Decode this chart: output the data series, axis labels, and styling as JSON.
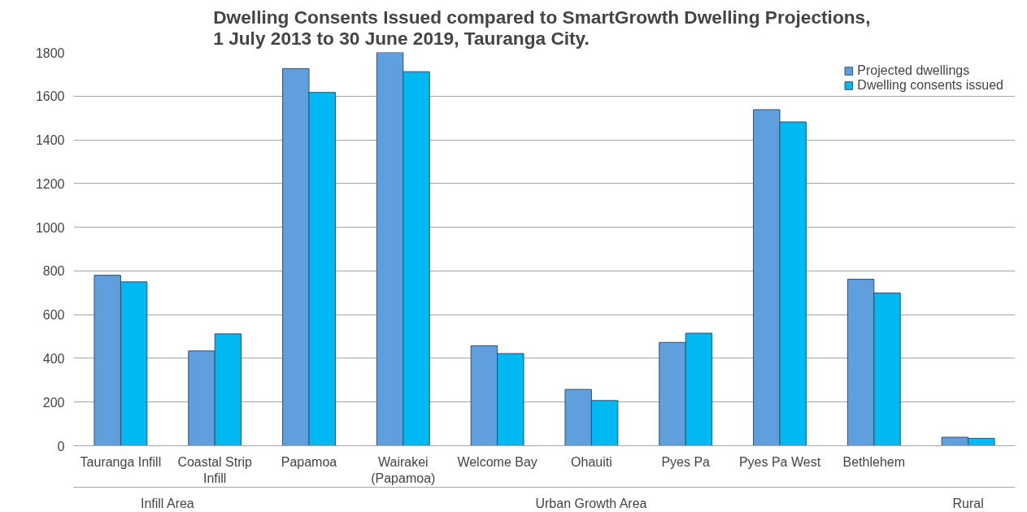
{
  "chart_data": {
    "type": "bar",
    "title": "Dwelling Consents Issued compared to  SmartGrowth Dwelling Projections,\n1 July 2013 to 30 June 2019, Tauranga City.",
    "categories": [
      "Tauranga Infill",
      "Coastal Strip\nInfill",
      "Papamoa",
      "Wairakei\n(Papamoa)",
      "Welcome Bay",
      "Ohauiti",
      "Pyes Pa",
      "Pyes Pa West",
      "Bethlehem",
      null
    ],
    "series": [
      {
        "name": "Projected dwellings",
        "color": "#609fdd",
        "values": [
          780,
          434,
          1726,
          1800,
          458,
          258,
          473,
          1538,
          762,
          39
        ]
      },
      {
        "name": "Dwelling consents issued",
        "color": "#00b9f2",
        "values": [
          750,
          512,
          1617,
          1712,
          422,
          207,
          515,
          1482,
          699,
          34
        ]
      }
    ],
    "annotations": [
      "Infill Area",
      "Urban Growth Area",
      "Rural"
    ],
    "ylim": [
      0,
      1800
    ],
    "yticks": [
      0,
      200,
      400,
      600,
      800,
      1000,
      1200,
      1400,
      1600,
      1800
    ],
    "grid": "y",
    "legend": "top right"
  }
}
